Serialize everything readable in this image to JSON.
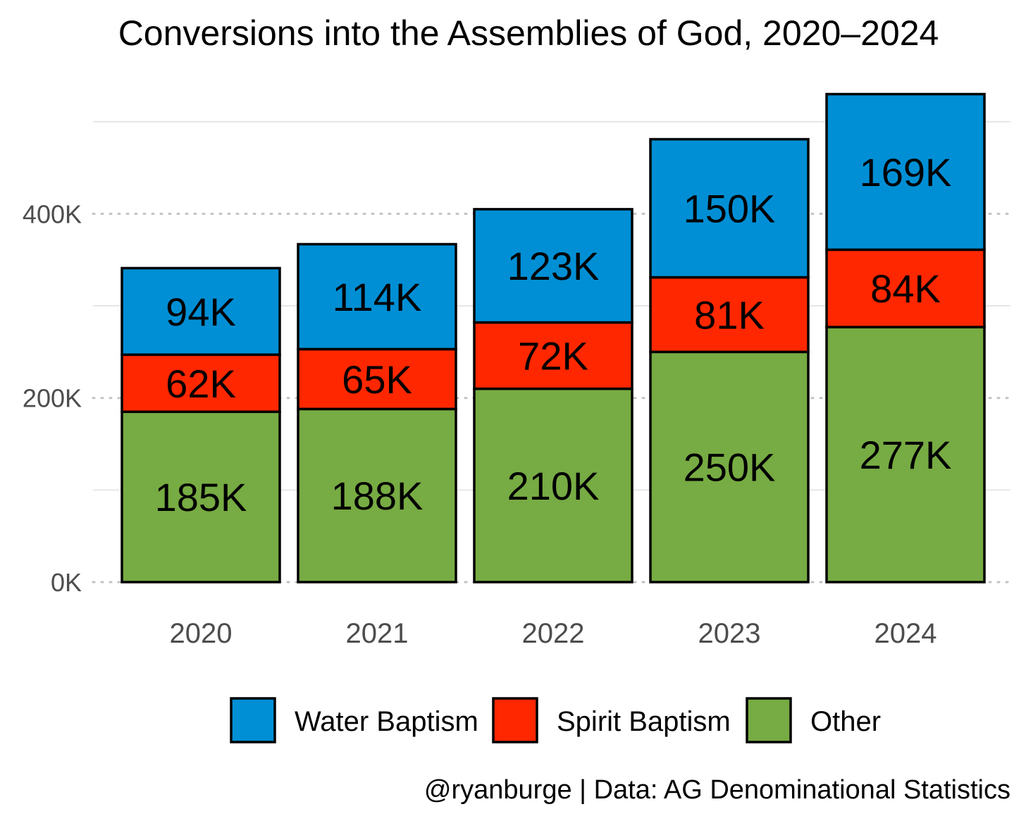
{
  "chart_data": {
    "type": "bar",
    "stacked": true,
    "title": "Conversions into the Assemblies of God, 2020–2024",
    "categories": [
      "2020",
      "2021",
      "2022",
      "2023",
      "2024"
    ],
    "series": [
      {
        "name": "Other",
        "color": "#77ab43",
        "values": [
          185,
          188,
          210,
          250,
          277
        ],
        "labels": [
          "185K",
          "188K",
          "210K",
          "250K",
          "277K"
        ]
      },
      {
        "name": "Spirit Baptism",
        "color": "#ff2700",
        "values": [
          62,
          65,
          72,
          81,
          84
        ],
        "labels": [
          "62K",
          "65K",
          "72K",
          "81K",
          "84K"
        ]
      },
      {
        "name": "Water Baptism",
        "color": "#008fd5",
        "values": [
          94,
          114,
          123,
          150,
          169
        ],
        "labels": [
          "94K",
          "114K",
          "123K",
          "150K",
          "169K"
        ]
      }
    ],
    "legend_order": [
      "Water Baptism",
      "Spirit Baptism",
      "Other"
    ],
    "legend_position": "bottom",
    "yticks": [
      0,
      200,
      400
    ],
    "ytick_labels": [
      "0K",
      "200K",
      "400K"
    ],
    "ylim": [
      0,
      530
    ],
    "xlabel": "",
    "ylabel": "",
    "value_unit": "thousands",
    "grid": true,
    "caption": "@ryanburge | Data: AG Denominational Statistics"
  }
}
